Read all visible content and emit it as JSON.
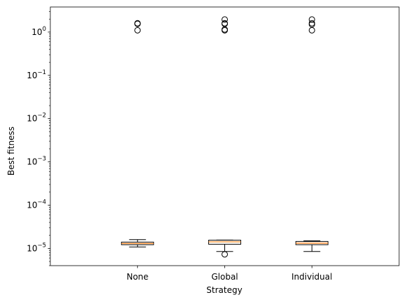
{
  "chart_data": {
    "type": "box",
    "title": "",
    "xlabel": "Strategy",
    "ylabel": "Best fitness",
    "yscale": "log",
    "ylim": [
      4e-06,
      3.8
    ],
    "yticks": [
      {
        "value": 1e-05,
        "base": "10",
        "exp": "−5"
      },
      {
        "value": 0.0001,
        "base": "10",
        "exp": "−4"
      },
      {
        "value": 0.001,
        "base": "10",
        "exp": "−3"
      },
      {
        "value": 0.01,
        "base": "10",
        "exp": "−2"
      },
      {
        "value": 0.1,
        "base": "10",
        "exp": "−1"
      },
      {
        "value": 1,
        "base": "10",
        "exp": "0"
      }
    ],
    "categories": [
      "None",
      "Global",
      "Individual"
    ],
    "boxes": [
      {
        "category": "None",
        "whisker_low": 1.08e-05,
        "q1": 1.22e-05,
        "median": 1.3e-05,
        "q3": 1.4e-05,
        "whisker_high": 1.6e-05,
        "fliers": [
          1.1,
          1.55,
          1.6
        ]
      },
      {
        "category": "Global",
        "whisker_low": 8.5e-06,
        "q1": 1.25e-05,
        "median": 1.42e-05,
        "q3": 1.55e-05,
        "whisker_high": 1.56e-05,
        "fliers": [
          7.3e-06,
          1.1,
          1.15,
          1.55,
          1.6,
          1.95
        ]
      },
      {
        "category": "Individual",
        "whisker_low": 8.5e-06,
        "q1": 1.22e-05,
        "median": 1.32e-05,
        "q3": 1.45e-05,
        "whisker_high": 1.5e-05,
        "fliers": [
          1.1,
          1.5,
          1.6,
          1.95
        ]
      }
    ],
    "colors": {
      "box_edge": "#000000",
      "median": "#ff7f0e",
      "box_fill": "#ffffff"
    },
    "grid": false,
    "legend": "none"
  }
}
